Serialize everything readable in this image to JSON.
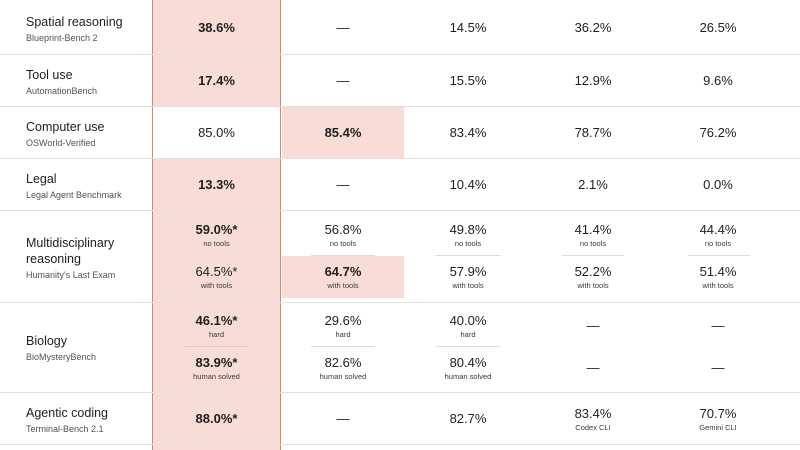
{
  "rows": [
    {
      "name": "Spatial reasoning",
      "source": "Blueprint-Bench 2",
      "c1": "38.6%",
      "c2": "—",
      "c3": "14.5%",
      "c4": "36.2%",
      "c5": "26.5%"
    },
    {
      "name": "Tool use",
      "source": "AutomationBench",
      "c1": "17.4%",
      "c2": "—",
      "c3": "15.5%",
      "c4": "12.9%",
      "c5": "9.6%"
    },
    {
      "name": "Computer use",
      "source": "OSWorld-Verified",
      "c1": "85.0%",
      "c2": "85.4%",
      "c3": "83.4%",
      "c4": "78.7%",
      "c5": "76.2%"
    },
    {
      "name": "Legal",
      "source": "Legal Agent Benchmark",
      "c1": "13.3%",
      "c2": "—",
      "c3": "10.4%",
      "c4": "2.1%",
      "c5": "0.0%"
    },
    {
      "name": "Multidisciplinary reasoning",
      "source": "Humanity's Last Exam",
      "a": {
        "c1": "59.0%*",
        "c2": "56.8%",
        "c3": "49.8%",
        "c4": "41.4%",
        "c5": "44.4%",
        "sub": "no tools"
      },
      "b": {
        "c1": "64.5%*",
        "c2": "64.7%",
        "c3": "57.9%",
        "c4": "52.2%",
        "c5": "51.4%",
        "sub": "with tools"
      }
    },
    {
      "name": "Biology",
      "source": "BioMysteryBench",
      "a": {
        "c1": "46.1%*",
        "c2": "29.6%",
        "c3": "40.0%",
        "c4": "—",
        "c5": "—",
        "sub": "hard"
      },
      "b": {
        "c1": "83.9%*",
        "c2": "82.6%",
        "c3": "80.4%",
        "c4": "—",
        "c5": "—",
        "sub": "human solved"
      }
    },
    {
      "name": "Agentic coding",
      "source": "Terminal-Bench 2.1",
      "c1": "88.0%*",
      "c2": "—",
      "c3": "82.7%",
      "c4": "83.4%",
      "c5": "70.7%",
      "c4_sub": "Codex CLI",
      "c5_sub": "Gemini CLI"
    }
  ],
  "colors": {
    "highlight": "#f7ddd6",
    "highlight_border": "#c98a72",
    "divider": "#e4e1dc"
  }
}
